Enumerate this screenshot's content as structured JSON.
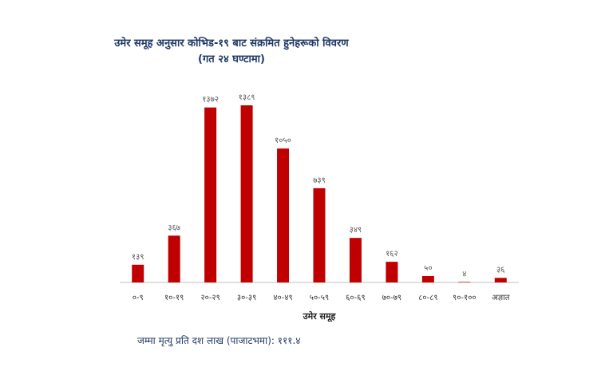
{
  "chart_data": {
    "type": "bar",
    "title": "उमेर समूह अनुसार कोभिड-१९ बाट संक्रमित हुनेहरूको विवरण",
    "subtitle": "(गत २४ घण्टामा)",
    "xlabel": "उमेर समूह",
    "ylabel": "",
    "categories": [
      "०-९",
      "१०-१९",
      "२०-२९",
      "३०-३९",
      "४०-४९",
      "५०-५९",
      "६०-६९",
      "७०-७९",
      "८०-८९",
      "९०-१००",
      "अज्ञात"
    ],
    "values": [
      139,
      367,
      1372,
      1389,
      1050,
      739,
      349,
      162,
      50,
      4,
      36
    ],
    "data_labels": [
      "१३९",
      "३६७",
      "१३७२",
      "१३८९",
      "१०५०",
      "७३९",
      "३४९",
      "१६२",
      "५०",
      "४",
      "३६"
    ],
    "ylim": [
      0,
      1389
    ],
    "grid": false,
    "legend": "none",
    "bar_color": "#c00000"
  },
  "footnote": "जम्मा मृत्यु प्रति दश लाख (पाजाटभमा): १११.४"
}
